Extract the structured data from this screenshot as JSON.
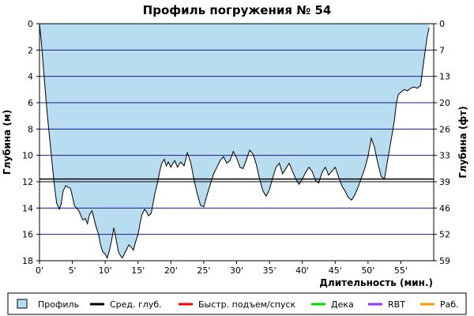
{
  "chart_data": {
    "type": "area",
    "title": "Профиль погружения № 54",
    "xlabel": "Длительность (мин.)",
    "ylabel_left": "Глубина (м)",
    "ylabel_right": "Глубина (фт)",
    "x_ticks": [
      "0'",
      "5'",
      "10'",
      "15'",
      "20'",
      "25'",
      "30'",
      "35'",
      "40'",
      "45'",
      "50'",
      "55'"
    ],
    "y_ticks_left": [
      "0",
      "2",
      "4",
      "6",
      "8",
      "10",
      "12",
      "14",
      "16",
      "18"
    ],
    "y_ticks_right": [
      "0",
      "7",
      "13",
      "20",
      "26",
      "33",
      "39",
      "46",
      "52",
      "59"
    ],
    "xlim": [
      0,
      60
    ],
    "ylim": [
      0,
      18
    ],
    "y_inverted": true,
    "grid": true,
    "legend_position": "bottom",
    "average_depth": 11.8,
    "fast_ascent_depth": 12.0,
    "legend": [
      {
        "label": "Профиль",
        "color": "#b8dcf0",
        "kind": "box"
      },
      {
        "label": "Сред. глуб.",
        "color": "#000000",
        "kind": "line"
      },
      {
        "label": "Быстр. подъем/спуск",
        "color": "#ff0000",
        "kind": "line"
      },
      {
        "label": "Дека",
        "color": "#00dd00",
        "kind": "line"
      },
      {
        "label": "RBT",
        "color": "#9933ff",
        "kind": "line"
      },
      {
        "label": "Раб.",
        "color": "#ff9900",
        "kind": "line"
      }
    ],
    "series": [
      {
        "x": [
          0,
          0.3,
          0.7,
          1.2,
          1.8,
          2.2,
          2.6,
          3.0,
          3.3,
          3.6,
          4.0,
          4.3,
          4.7,
          5.0,
          5.3,
          5.6,
          6.0,
          6.3,
          6.6,
          7.0,
          7.3,
          7.6,
          8.0,
          8.3,
          8.6,
          9.0,
          9.3,
          9.6,
          10.0,
          10.3,
          10.6,
          11.0,
          11.3,
          11.6,
          12.0,
          12.3,
          12.6,
          13.0,
          13.3,
          13.6,
          14.0,
          14.3,
          14.6,
          15.0,
          15.3,
          15.6,
          16.0,
          16.3,
          16.6,
          17.0,
          17.3,
          17.6,
          18.0,
          18.3,
          18.6,
          19.0,
          19.3,
          19.6,
          20.0,
          20.3,
          20.6,
          21.0,
          21.5,
          22.0,
          22.5,
          23.0,
          23.5,
          24.0,
          24.5,
          25.0,
          25.5,
          26.0,
          26.5,
          27.0,
          27.5,
          28.0,
          28.5,
          29.0,
          29.5,
          30.0,
          30.5,
          31.0,
          31.5,
          32.0,
          32.5,
          33.0,
          33.5,
          34.0,
          34.5,
          35.0,
          35.5,
          36.0,
          36.5,
          37.0,
          37.5,
          38.0,
          38.5,
          39.0,
          39.5,
          40.0,
          40.5,
          41.0,
          41.5,
          42.0,
          42.5,
          43.0,
          43.5,
          44.0,
          44.5,
          45.0,
          45.5,
          46.0,
          46.5,
          47.0,
          47.5,
          48.0,
          48.5,
          49.0,
          49.5,
          50.0,
          50.5,
          51.0,
          51.5,
          52.0,
          52.5,
          53.0,
          53.5,
          54.0,
          54.3,
          54.6,
          55.0,
          55.5,
          56.0,
          56.5,
          57.0,
          57.5,
          58.0,
          58.5,
          59.0,
          59.3
        ],
        "y": [
          0,
          1.5,
          4.0,
          7.0,
          10.0,
          12.0,
          13.6,
          14.1,
          13.7,
          12.7,
          12.3,
          12.4,
          12.5,
          13.1,
          13.8,
          14.0,
          14.2,
          14.6,
          14.9,
          14.8,
          15.2,
          14.5,
          14.2,
          14.8,
          15.4,
          16.0,
          16.8,
          17.3,
          17.5,
          17.8,
          17.3,
          16.4,
          15.5,
          16.2,
          17.3,
          17.6,
          17.8,
          17.4,
          17.1,
          16.8,
          17.0,
          17.2,
          16.6,
          16.0,
          15.2,
          14.5,
          14.1,
          14.3,
          14.6,
          14.4,
          13.6,
          12.8,
          12.0,
          11.2,
          10.6,
          10.3,
          10.8,
          10.5,
          10.9,
          10.6,
          10.4,
          10.9,
          10.5,
          10.8,
          9.8,
          10.5,
          11.8,
          12.9,
          13.8,
          13.9,
          13.0,
          12.2,
          11.4,
          10.9,
          10.4,
          10.1,
          10.6,
          10.4,
          9.7,
          10.2,
          10.9,
          11.0,
          10.3,
          9.6,
          9.9,
          10.7,
          11.8,
          12.7,
          13.1,
          12.6,
          11.7,
          10.9,
          10.6,
          11.4,
          11.0,
          10.6,
          11.2,
          11.8,
          12.2,
          11.8,
          11.3,
          10.9,
          11.2,
          11.9,
          12.1,
          11.3,
          10.9,
          11.5,
          11.2,
          10.9,
          11.6,
          12.3,
          12.7,
          13.2,
          13.4,
          13.0,
          12.4,
          11.7,
          11.0,
          10.1,
          8.7,
          9.4,
          10.6,
          11.6,
          11.8,
          10.3,
          8.9,
          7.4,
          6.1,
          5.4,
          5.2,
          5.0,
          5.1,
          4.9,
          4.8,
          4.9,
          4.7,
          2.8,
          1.0,
          0.3
        ]
      }
    ]
  }
}
